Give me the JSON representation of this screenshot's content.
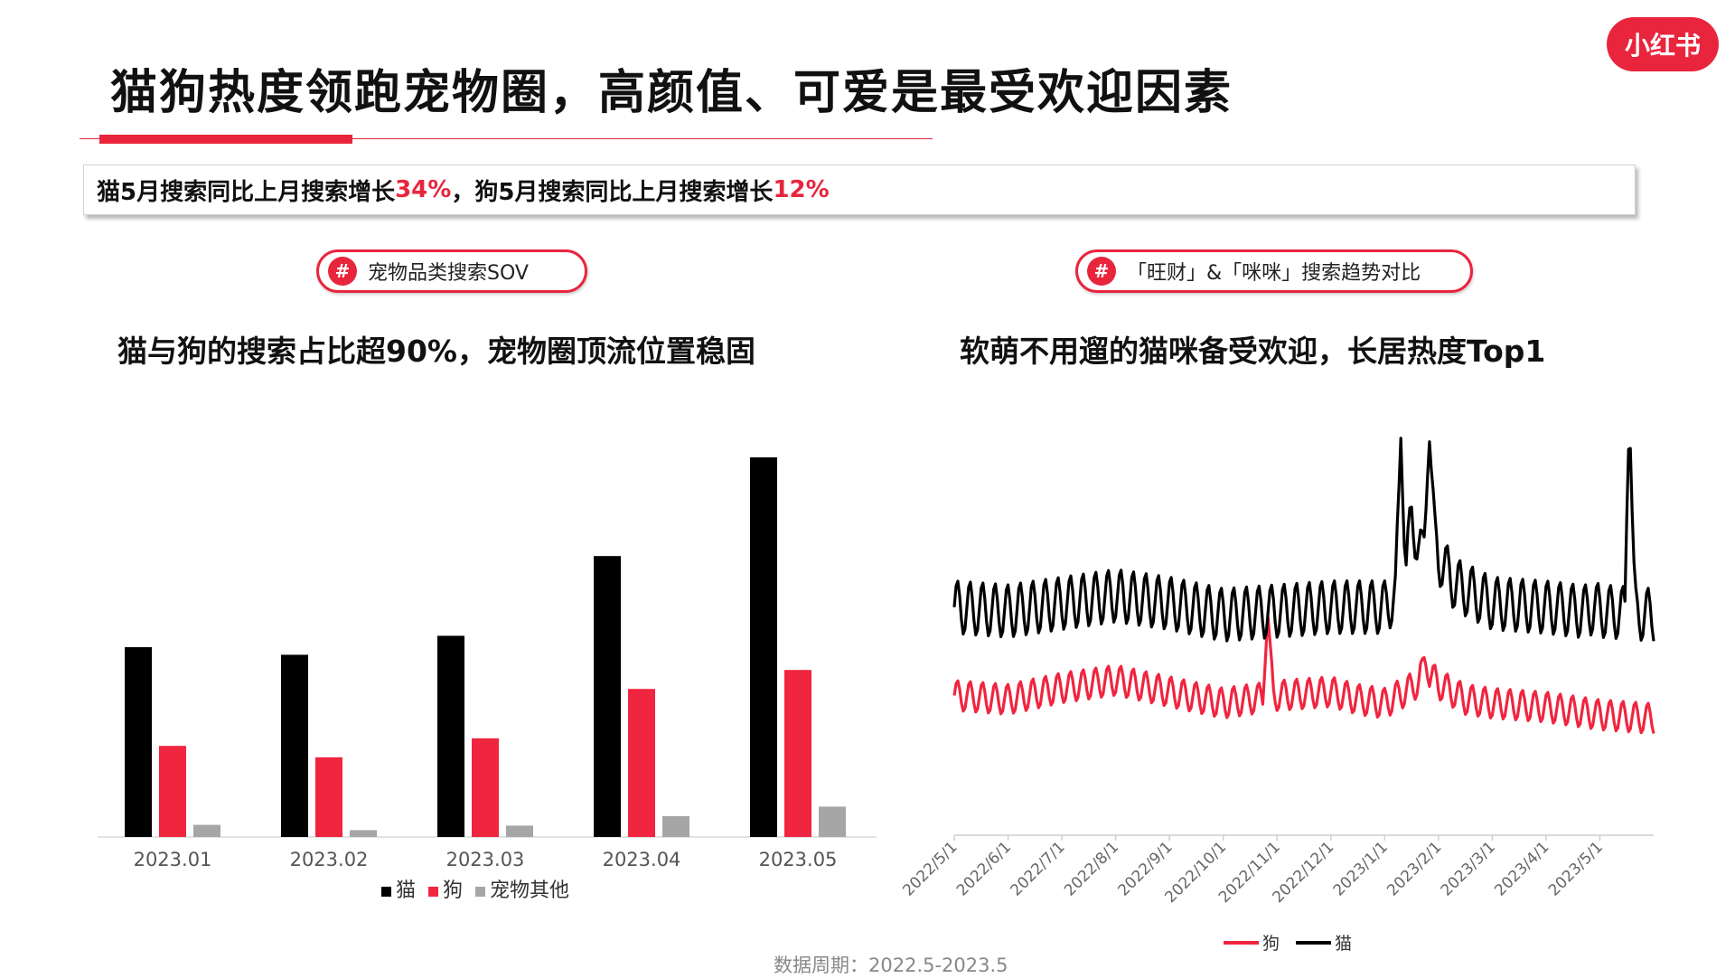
{
  "header": {
    "title": "猫狗热度领跑宠物圈，高颜值、可爱是最受欢迎因素",
    "logo_text": "小红书"
  },
  "banner": {
    "part1": "猫5月搜索同比上月搜索增长",
    "value1": "34%",
    "separator": "，",
    "part2": "狗5月搜索同比上月搜索增长",
    "value2": "12%"
  },
  "left_panel": {
    "tag_hash": "#",
    "tag_text": "宠物品类搜索SOV",
    "subtitle": "猫与狗的搜索占比超90%，宠物圈顶流位置稳固"
  },
  "right_panel": {
    "tag_hash": "#",
    "tag_text": "「旺财」&「咪咪」搜索趋势对比",
    "subtitle": "软萌不用遛的猫咪备受欢迎，长居热度Top1"
  },
  "footer": {
    "text": "数据周期：2022.5-2023.5"
  },
  "colors": {
    "accent": "#e8253d",
    "cat": "#000000",
    "dog": "#f0253f",
    "other": "#a6a6a6"
  },
  "chart_data": [
    {
      "type": "bar",
      "categories": [
        "2023.01",
        "2023.02",
        "2023.03",
        "2023.04",
        "2023.05"
      ],
      "series": [
        {
          "name": "猫",
          "color": "#000000",
          "values": [
            50,
            48,
            53,
            74,
            100
          ]
        },
        {
          "name": "狗",
          "color": "#f0253f",
          "values": [
            24,
            21,
            26,
            39,
            44
          ]
        },
        {
          "name": "宠物其他",
          "color": "#a6a6a6",
          "values": [
            3.2,
            1.8,
            3.0,
            5.5,
            8.0
          ]
        }
      ],
      "ylim": [
        0,
        105
      ],
      "legend_position": "bottom",
      "note": "relative search volume, no y-axis printed"
    },
    {
      "type": "line",
      "x_ticks": [
        "2022/5/1",
        "2022/6/1",
        "2022/7/1",
        "2022/8/1",
        "2022/9/1",
        "2022/10/1",
        "2022/11/1",
        "2022/12/1",
        "2023/1/1",
        "2023/2/1",
        "2023/3/1",
        "2023/4/1",
        "2023/5/1"
      ],
      "x_range": [
        "2022/5/1",
        "2023/5/31"
      ],
      "ylim": [
        0,
        100
      ],
      "legend_position": "bottom",
      "series": [
        {
          "name": "猫",
          "color": "#000000",
          "anchors_month": [
            0,
            1,
            2,
            3,
            4,
            5,
            6,
            7,
            8,
            8.35,
            8.5,
            8.7,
            8.85,
            9,
            9.3,
            10,
            11,
            11.6,
            11.75,
            11.9,
            12,
            13
          ],
          "base": [
            49,
            48,
            50,
            52,
            50,
            47,
            48,
            49,
            49,
            54,
            72,
            62,
            72,
            62,
            55,
            50,
            49,
            48,
            48,
            49,
            48,
            47
          ],
          "amplitude": 7,
          "spikes": [
            {
              "month": 8.3,
              "value": 93
            },
            {
              "month": 8.83,
              "value": 93
            },
            {
              "month": 12.55,
              "value": 100
            }
          ]
        },
        {
          "name": "狗",
          "color": "#f0253f",
          "anchors_month": [
            0,
            1,
            2,
            3,
            4,
            5,
            6,
            7,
            7.5,
            8,
            8.5,
            8.8,
            9,
            9.5,
            10,
            11,
            12,
            13
          ],
          "base": [
            26,
            25,
            28,
            30,
            27,
            24,
            26,
            27,
            25,
            24,
            28,
            32,
            29,
            25,
            24,
            23,
            21,
            20
          ],
          "amplitude": 4,
          "spikes": [
            {
              "month": 5.83,
              "value": 47
            },
            {
              "month": 8.73,
              "value": 36
            }
          ]
        }
      ]
    }
  ]
}
